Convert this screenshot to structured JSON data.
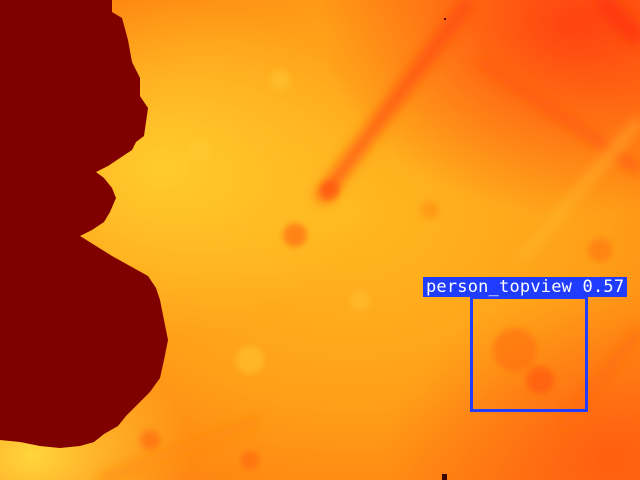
{
  "image": {
    "description_colors": {
      "background_hot": "#ffb020",
      "background_warm": "#ff8c10",
      "background_red": "#ff4a10",
      "hot_region": "#800000",
      "detection_color": "#1f3cff"
    }
  },
  "detections": [
    {
      "label": "person_topview 0.57"
    }
  ]
}
